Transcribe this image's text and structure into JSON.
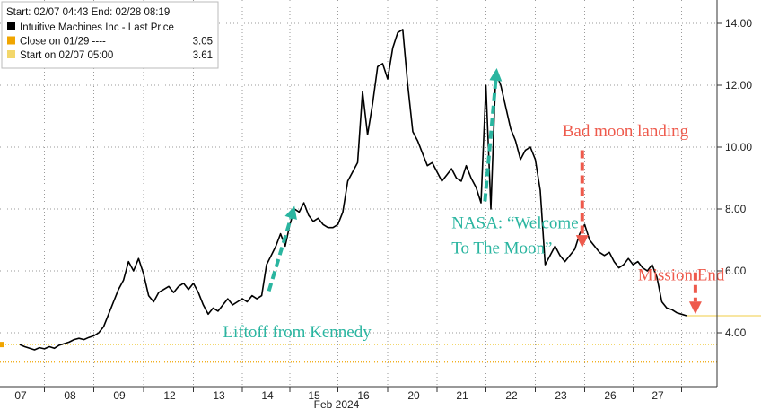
{
  "chart_data": {
    "type": "line",
    "title": "",
    "xlabel": "",
    "ylabel": "",
    "ylim": [
      3.35,
      14.9
    ],
    "y_ticks": [
      4.0,
      6.0,
      8.0,
      10.0,
      12.0,
      14.0
    ],
    "y_tick_labels": [
      "4.00",
      "6.00",
      "8.00",
      "10.00",
      "12.00",
      "14.00"
    ],
    "y_axis_side": "right",
    "grid": true,
    "legend_placement": "top-left",
    "x_day_labels": [
      "07",
      "08",
      "09",
      "12",
      "13",
      "14",
      "15",
      "16",
      "20",
      "21",
      "22",
      "23",
      "26",
      "27"
    ],
    "x_month_label": "Feb 2024",
    "legend": {
      "header": "Start: 02/07 04:43 End: 02/28 08:19",
      "items": [
        {
          "label": "Intuitive Machines Inc - Last Price",
          "value": "",
          "color": "#000000"
        },
        {
          "label": "Close on 01/29 ----",
          "value": "3.05",
          "color": "#f0a500"
        },
        {
          "label": "Start on 02/07 05:00",
          "value": "3.61",
          "color": "#f3d76b"
        }
      ]
    },
    "reference_lines": [
      {
        "name": "Close on 01/29",
        "value": 3.05,
        "color": "#f0a500"
      },
      {
        "name": "Start on 02/07 05:00",
        "value": 3.61,
        "color": "#f3d76b"
      }
    ],
    "series": [
      {
        "color": "#000000",
        "x": [
          0,
          0.1,
          0.2,
          0.3,
          0.4,
          0.5,
          0.6,
          0.7,
          0.8,
          0.9,
          1.0,
          1.1,
          1.2,
          1.3,
          1.4,
          1.5,
          1.6,
          1.7,
          1.8,
          1.9,
          2.0,
          2.1,
          2.2,
          2.3,
          2.4,
          2.5,
          2.6,
          2.7,
          2.8,
          2.9,
          3.0,
          3.1,
          3.2,
          3.3,
          3.4,
          3.5,
          3.6,
          3.7,
          3.8,
          3.9,
          4.0,
          4.1,
          4.2,
          4.3,
          4.4,
          4.5,
          4.6,
          4.7,
          4.8,
          4.9,
          5.0,
          5.1,
          5.2,
          5.3,
          5.4,
          5.5,
          5.6,
          5.7,
          5.8,
          5.9,
          6.0,
          6.1,
          6.2,
          6.3,
          6.4,
          6.5,
          6.6,
          6.7,
          6.8,
          6.9,
          7.0,
          7.1,
          7.2,
          7.3,
          7.4,
          7.5,
          7.6,
          7.7,
          7.8,
          7.9,
          8.0,
          8.1,
          8.2,
          8.3,
          8.4,
          8.5,
          8.6,
          8.7,
          8.8,
          8.9,
          9.0,
          9.1,
          9.2,
          9.3,
          9.4,
          9.5,
          9.6,
          9.7,
          9.8,
          9.9,
          10.0,
          10.1,
          10.2,
          10.3,
          10.4,
          10.5,
          10.6,
          10.7,
          10.8,
          10.9,
          11.0,
          11.1,
          11.2,
          11.3,
          11.4,
          11.5,
          11.6,
          11.7,
          11.8,
          11.9,
          12.0,
          12.1,
          12.2,
          12.3,
          12.4,
          12.5,
          12.6,
          12.7,
          12.8,
          12.9,
          13.0,
          13.1,
          13.2,
          13.3,
          13.4,
          13.5,
          13.6
        ],
        "values": [
          3.62,
          3.55,
          3.5,
          3.45,
          3.52,
          3.48,
          3.55,
          3.5,
          3.6,
          3.65,
          3.7,
          3.78,
          3.82,
          3.78,
          3.85,
          3.9,
          4.0,
          4.2,
          4.6,
          5.0,
          5.4,
          5.7,
          6.3,
          6.0,
          6.4,
          5.9,
          5.2,
          5.0,
          5.3,
          5.4,
          5.5,
          5.3,
          5.5,
          5.6,
          5.4,
          5.6,
          5.3,
          4.9,
          4.6,
          4.8,
          4.7,
          4.9,
          5.1,
          4.9,
          5.0,
          5.1,
          5.0,
          5.2,
          5.1,
          5.2,
          6.2,
          6.5,
          6.8,
          7.2,
          6.8,
          7.5,
          8.0,
          7.9,
          8.2,
          7.8,
          7.6,
          7.7,
          7.5,
          7.4,
          7.4,
          7.5,
          7.9,
          8.9,
          9.2,
          9.5,
          11.8,
          10.4,
          11.4,
          12.6,
          12.7,
          12.2,
          13.2,
          13.7,
          13.8,
          12.0,
          10.5,
          10.2,
          9.8,
          9.4,
          9.5,
          9.2,
          8.9,
          9.1,
          9.3,
          9.0,
          8.9,
          9.4,
          9.0,
          8.7,
          8.2,
          12.0,
          8.0,
          12.4,
          12.0,
          11.3,
          10.6,
          10.2,
          9.6,
          9.9,
          10.0,
          9.6,
          8.6,
          6.2,
          6.5,
          6.8,
          6.5,
          6.3,
          6.5,
          6.7,
          7.2,
          7.5,
          7.0,
          6.8,
          6.6,
          6.5,
          6.6,
          6.3,
          6.1,
          6.2,
          6.4,
          6.2,
          6.3,
          6.1,
          6.0,
          6.2,
          5.8,
          5.0,
          4.8,
          4.75,
          4.65,
          4.6,
          4.55
        ]
      },
      {
        "color": "#f3d76b",
        "x": [
          13.6,
          16.4
        ],
        "values": [
          4.55,
          4.55
        ]
      }
    ],
    "annotations": [
      {
        "text": "Liftoff from Kennedy",
        "color": "#2ab5a0",
        "x": 4.1,
        "y": 3.85
      },
      {
        "text": "NASA: “Welcome",
        "color": "#2ab5a0",
        "x": 8.8,
        "y": 7.38
      },
      {
        "text": "To The Moon”",
        "color": "#2ab5a0",
        "x": 8.8,
        "y": 6.56
      },
      {
        "text": "Bad moon landing",
        "color": "#ee5a4c",
        "x": 11.05,
        "y": 10.35
      },
      {
        "text": "Mission End",
        "color": "#ee5a4c",
        "x": 12.6,
        "y": 5.7
      }
    ],
    "arrows": [
      {
        "color": "#2ab5a0",
        "direction": "up",
        "from": [
          5.05,
          5.35
        ],
        "to": [
          5.6,
          8.1
        ]
      },
      {
        "color": "#2ab5a0",
        "direction": "up",
        "from": [
          9.48,
          8.25
        ],
        "to": [
          9.72,
          12.55
        ]
      },
      {
        "color": "#ee5a4c",
        "direction": "down",
        "from": [
          11.45,
          9.9
        ],
        "to": [
          11.45,
          6.75
        ]
      },
      {
        "color": "#ee5a4c",
        "direction": "down",
        "from": [
          13.78,
          5.95
        ],
        "to": [
          13.78,
          4.6
        ]
      }
    ]
  }
}
